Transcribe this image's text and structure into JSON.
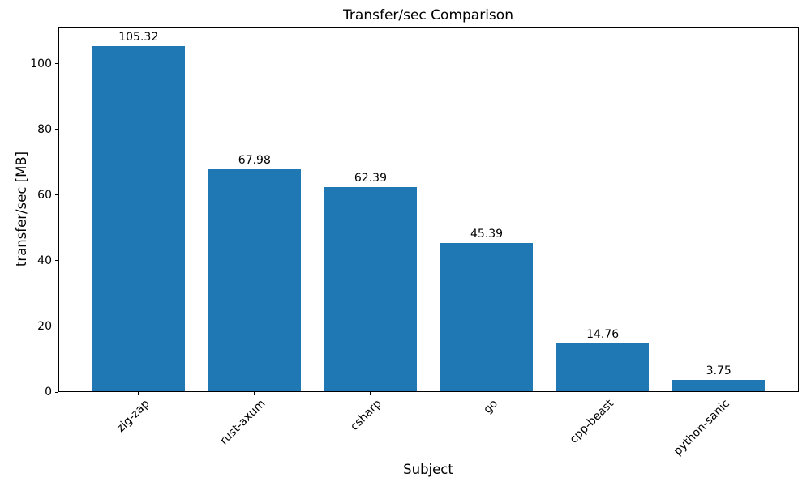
{
  "chart_data": {
    "type": "bar",
    "title": "Transfer/sec Comparison",
    "xlabel": "Subject",
    "ylabel": "transfer/sec [MB]",
    "categories": [
      "zig-zap",
      "rust-axum",
      "csharp",
      "go",
      "cpp-beast",
      "python-sanic"
    ],
    "values": [
      105.32,
      67.98,
      62.39,
      45.39,
      14.76,
      3.75
    ],
    "bar_labels": [
      "105.32",
      "67.98",
      "62.39",
      "45.39",
      "14.76",
      "3.75"
    ],
    "bar_color": "#1f77b4",
    "yticks": [
      0,
      20,
      40,
      60,
      80,
      100
    ],
    "ylim": [
      0,
      111.3
    ],
    "x_tick_rotation_deg": 45,
    "grid": false,
    "legend": null
  }
}
